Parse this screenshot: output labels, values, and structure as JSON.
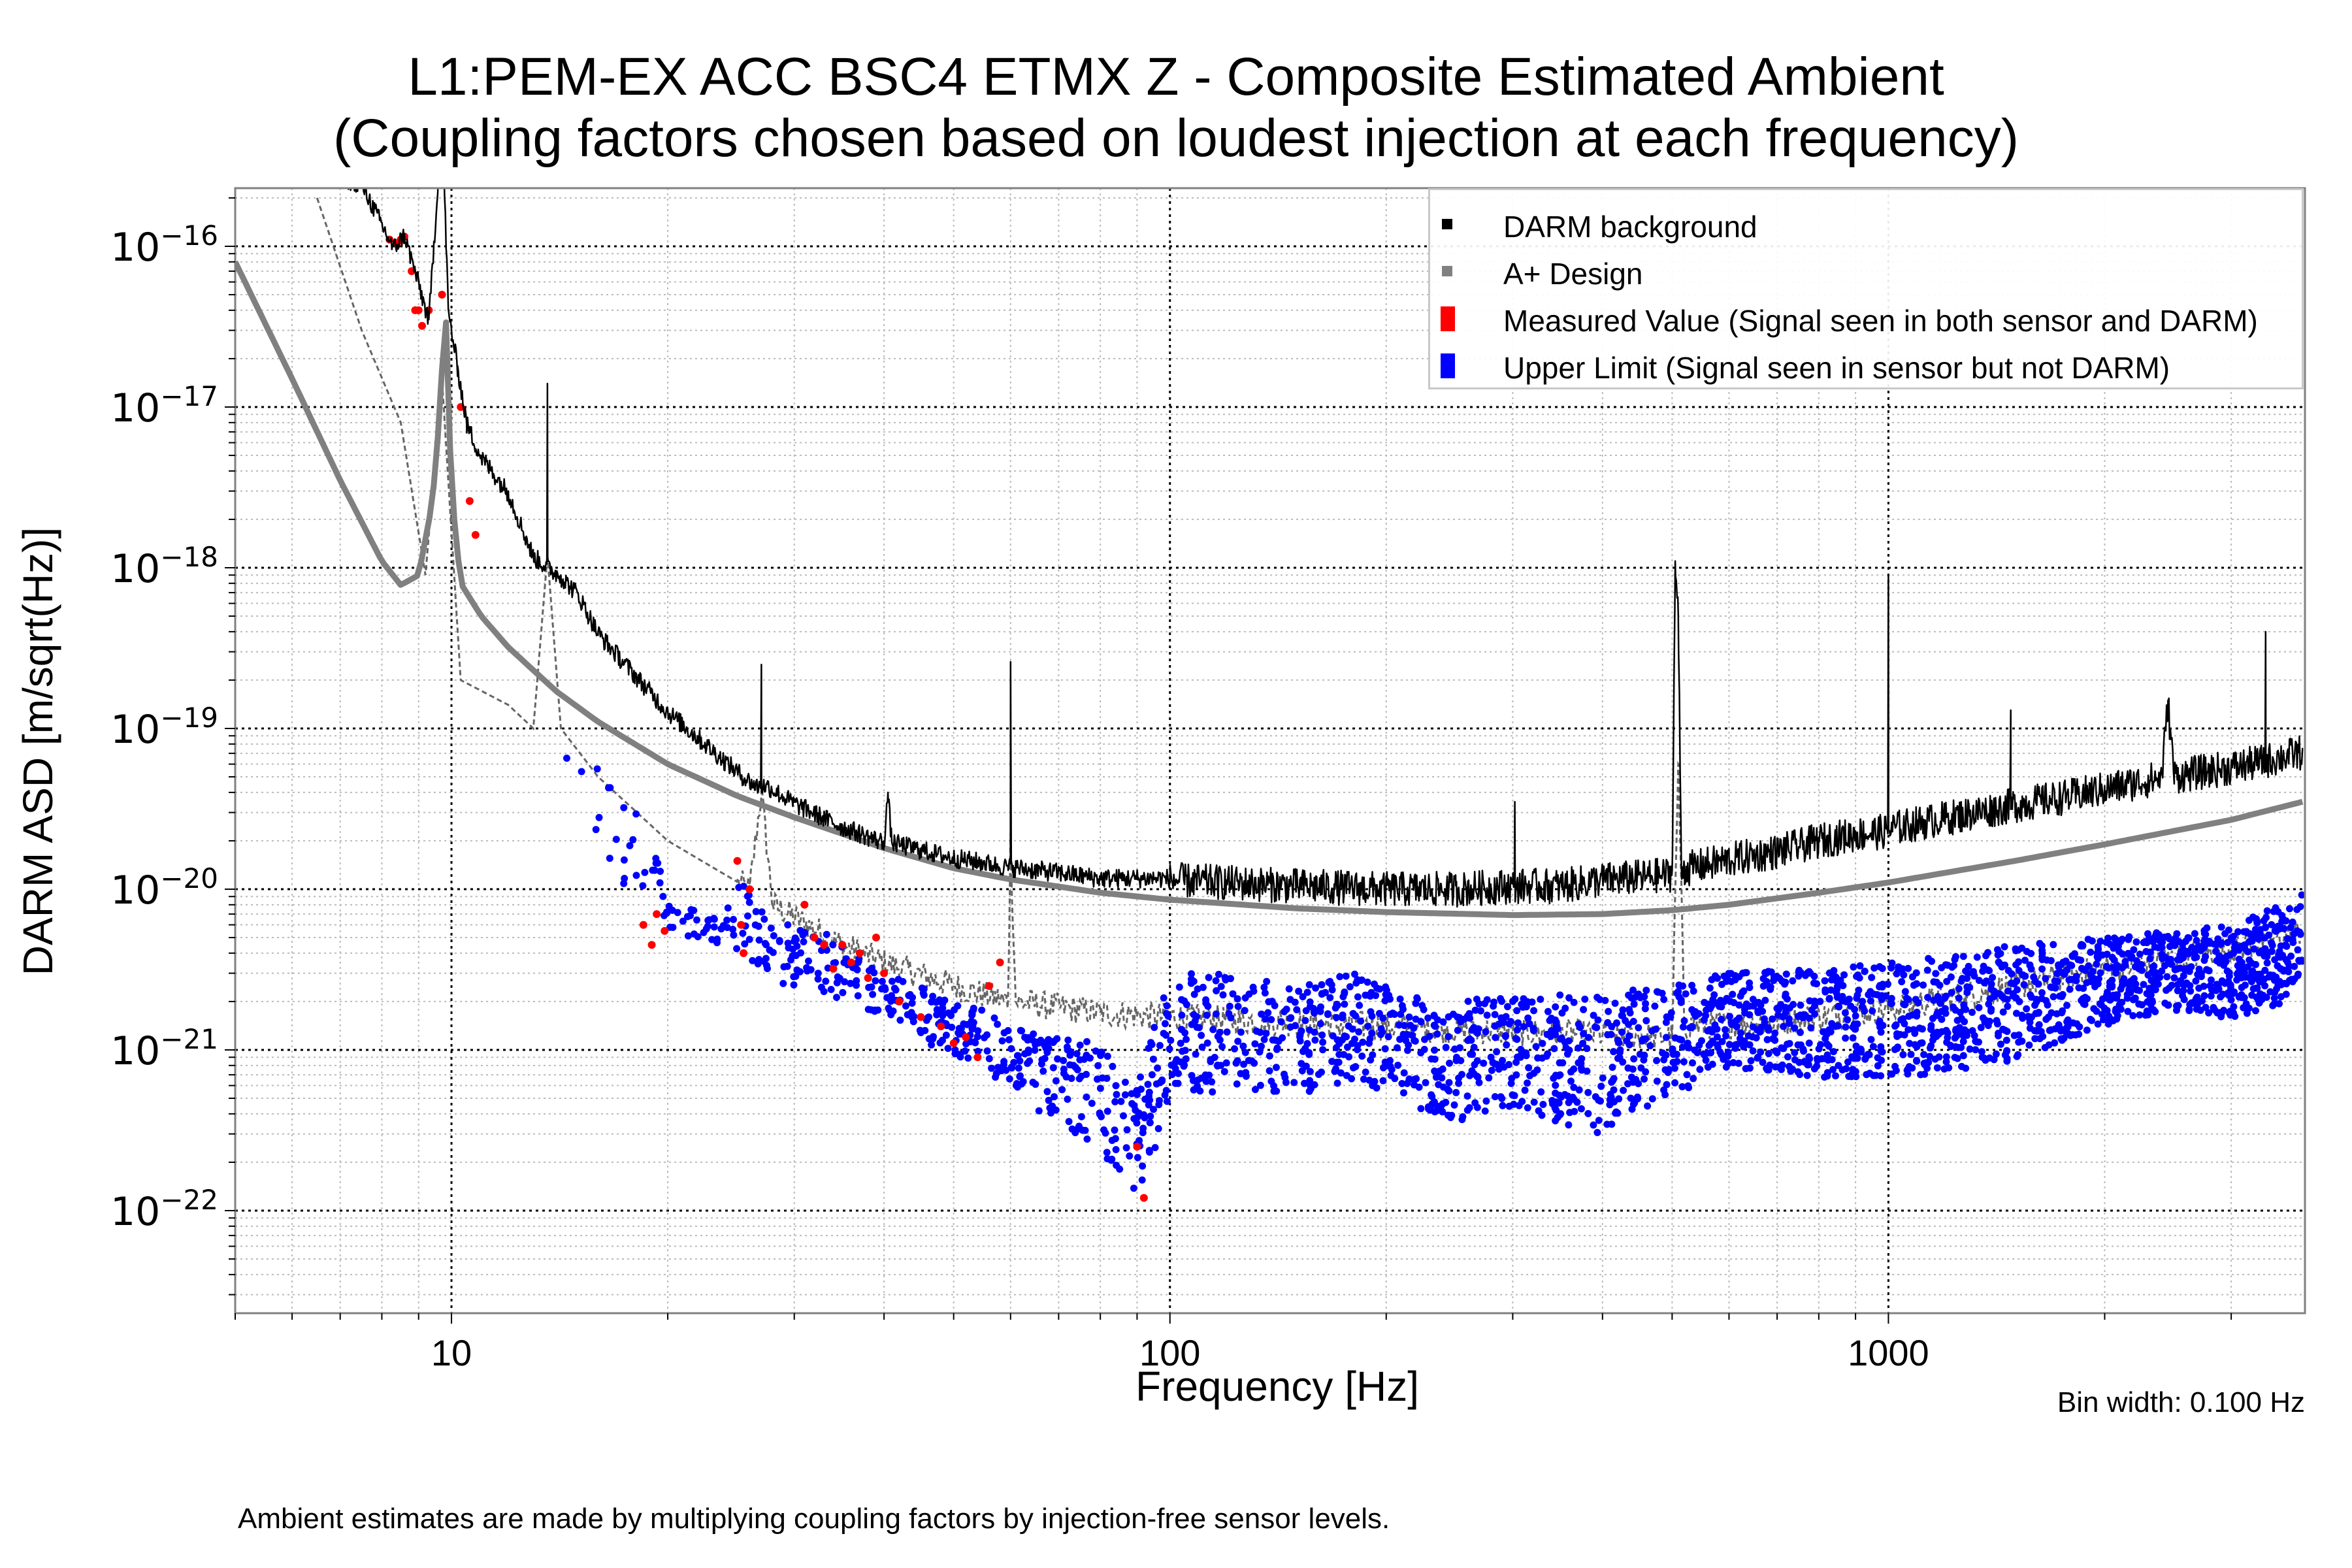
{
  "chart_data": {
    "type": "line",
    "title": "L1:PEM-EX ACC BSC4 ETMX Z - Composite Estimated Ambient",
    "subtitle": "(Coupling factors chosen based on loudest injection at each frequency)",
    "xlabel": "Frequency [Hz]",
    "ylabel": "DARM ASD [m/sqrt(Hz)]",
    "xscale": "log",
    "yscale": "log",
    "xlim": [
      5.0,
      3800
    ],
    "ylim": [
      2.3e-23,
      2.3e-16
    ],
    "grid": true,
    "x_ticks": [
      {
        "value": 10,
        "label": "10"
      },
      {
        "value": 100,
        "label": "100"
      },
      {
        "value": 1000,
        "label": "1000"
      }
    ],
    "y_ticks": [
      {
        "value": 1e-16,
        "base": "10",
        "exp": "−16"
      },
      {
        "value": 1e-17,
        "base": "10",
        "exp": "−17"
      },
      {
        "value": 1e-18,
        "base": "10",
        "exp": "−18"
      },
      {
        "value": 1e-19,
        "base": "10",
        "exp": "−19"
      },
      {
        "value": 1e-20,
        "base": "10",
        "exp": "−20"
      },
      {
        "value": 1e-21,
        "base": "10",
        "exp": "−21"
      },
      {
        "value": 1e-22,
        "base": "10",
        "exp": "−22"
      }
    ],
    "legend_position": "top-right",
    "legend": [
      {
        "label": "DARM background",
        "color": "#000000",
        "kind": "line"
      },
      {
        "label": "A+ Design",
        "color": "#808080",
        "kind": "line"
      },
      {
        "label": "Measured Value (Signal seen in both sensor and DARM)",
        "color": "#ff0000",
        "kind": "points"
      },
      {
        "label": "Upper Limit (Signal seen in sensor but not DARM)",
        "color": "#0000ff",
        "kind": "points"
      }
    ],
    "series": [
      {
        "name": "DARM background",
        "color": "#000000",
        "x": [
          6.5,
          7.5,
          8.3,
          8.6,
          9.0,
          9.3,
          9.6,
          9.75,
          9.9,
          10.2,
          10.5,
          11,
          12,
          13,
          13.6,
          14.2,
          15,
          16,
          18,
          20,
          22,
          25,
          26.5,
          27,
          27.5,
          30,
          35,
          40,
          40.5,
          41,
          45,
          50,
          55,
          59.5,
          60,
          60.5,
          70,
          80,
          100,
          150,
          200,
          250,
          300,
          302,
          304,
          350,
          400,
          450,
          500,
          505,
          510,
          515,
          520,
          600,
          700,
          800,
          900,
          990,
          1000,
          1010,
          1100,
          1200,
          1300,
          1450,
          1480,
          1500,
          1800,
          2000,
          2200,
          2400,
          2450,
          2500,
          3000,
          3300,
          3350,
          3400,
          3770
        ],
        "y": [
          3e-16,
          2.5e-16,
          1e-16,
          1.2e-16,
          6e-17,
          3.5e-17,
          3e-16,
          3.5e-16,
          4e-17,
          1.8e-17,
          8e-18,
          5e-18,
          3e-18,
          1.2e-18,
          1.4e-17,
          9e-19,
          7e-19,
          4e-19,
          2.2e-19,
          1.3e-19,
          9e-20,
          5.5e-20,
          4.5e-20,
          2.5e-19,
          4.5e-20,
          3.5e-20,
          2.5e-20,
          2e-20,
          4e-20,
          2e-20,
          1.8e-20,
          1.6e-20,
          1.5e-20,
          1.4e-20,
          2.6e-19,
          1.4e-20,
          1.3e-20,
          1.2e-20,
          1.2e-20,
          1.1e-20,
          1.05e-20,
          1.05e-20,
          1.1e-20,
          3.5e-20,
          1.1e-20,
          1.1e-20,
          1.2e-20,
          1.25e-20,
          1.3e-20,
          1.1e-18,
          5e-19,
          1.4e-20,
          1.4e-20,
          1.6e-20,
          1.8e-20,
          2.1e-20,
          2.3e-20,
          2.4e-20,
          9e-19,
          2.5e-20,
          2.7e-20,
          2.9e-20,
          3.1e-20,
          3.4e-20,
          1.3e-19,
          3.5e-20,
          4e-20,
          4.4e-20,
          4.8e-20,
          5.2e-20,
          1.5e-19,
          5.3e-20,
          6e-20,
          6.5e-20,
          4e-19,
          6.7e-20,
          7.5e-20
        ]
      },
      {
        "name": "A+ Design",
        "color": "#808080",
        "x": [
          5.0,
          6.0,
          7.0,
          8.0,
          8.5,
          9.0,
          9.4,
          9.65,
          9.8,
          10.0,
          10.3,
          11,
          12,
          14,
          16,
          20,
          25,
          30,
          40,
          50,
          60,
          80,
          100,
          150,
          200,
          300,
          400,
          500,
          600,
          800,
          1000,
          1500,
          2000,
          3000,
          3770
        ],
        "y": [
          8e-17,
          1.5e-17,
          3.5e-18,
          1.1e-18,
          7.8e-19,
          9e-19,
          2.5e-18,
          1e-17,
          5e-17,
          3e-18,
          8e-19,
          5e-19,
          3.2e-19,
          1.7e-19,
          1.1e-19,
          6e-20,
          3.8e-20,
          2.8e-20,
          1.8e-20,
          1.35e-20,
          1.15e-20,
          9.5e-21,
          8.6e-21,
          7.6e-21,
          7.2e-21,
          6.9e-21,
          7e-21,
          7.4e-21,
          8e-21,
          9.5e-21,
          1.1e-20,
          1.5e-20,
          1.9e-20,
          2.7e-20,
          3.5e-20
        ]
      },
      {
        "name": "DARM background (ambient level, dashed)",
        "color": "#666666",
        "x": [
          6.5,
          7.5,
          8.5,
          9.2,
          9.7,
          10.3,
          12,
          13,
          13.6,
          14.2,
          16,
          20,
          26,
          27,
          28,
          35,
          40,
          50,
          59.5,
          60,
          61,
          80,
          100,
          200,
          300,
          500,
          510,
          520,
          700,
          1000,
          1500,
          2000,
          3000,
          3770
        ],
        "y": [
          2e-16,
          3e-17,
          8e-18,
          9e-19,
          1.5e-17,
          2e-19,
          1.4e-19,
          1e-19,
          1.2e-18,
          1e-19,
          5e-20,
          2e-20,
          1e-20,
          4e-20,
          8e-21,
          4.5e-21,
          3.5e-21,
          2.5e-21,
          2e-21,
          2e-20,
          2e-21,
          1.7e-21,
          1.6e-21,
          1.4e-21,
          1.3e-21,
          1.2e-21,
          6e-20,
          1.4e-21,
          1.5e-21,
          1.8e-21,
          2.5e-21,
          3.2e-21,
          4.2e-21,
          5.5e-21
        ]
      }
    ],
    "measured_points": {
      "name": "Measured Value (Signal seen in both sensor and DARM)",
      "color": "#ff0000",
      "x": [
        8.2,
        8.4,
        8.5,
        8.6,
        8.8,
        8.9,
        9.0,
        9.1,
        9.3,
        9.7,
        10.3,
        10.6,
        10.8,
        18.5,
        19.0,
        19.3,
        19.8,
        25.0,
        25.3,
        25.5,
        26.0,
        31.0,
        32.0,
        33.0,
        34.0,
        35.0,
        36.0,
        37.0,
        38.0,
        39.0,
        40.0,
        42.0,
        45.0,
        48.0,
        50.0,
        52.0,
        54.0,
        56.0,
        58.0,
        90.0,
        92.0
      ],
      "y": [
        1.1e-16,
        1.05e-16,
        1.1e-16,
        1.15e-16,
        7e-17,
        4e-17,
        4e-17,
        3.2e-17,
        4e-17,
        5e-17,
        1e-17,
        2.6e-18,
        1.6e-18,
        6e-21,
        4.5e-21,
        7e-21,
        5.5e-21,
        1.5e-20,
        6e-21,
        4e-21,
        1e-20,
        8e-21,
        5e-21,
        4.5e-21,
        3.2e-21,
        4.5e-21,
        3.5e-21,
        4e-21,
        2.8e-21,
        5e-21,
        3e-21,
        2e-21,
        1.6e-21,
        1.4e-21,
        1.1e-21,
        1.2e-21,
        9e-22,
        2.5e-21,
        3.5e-21,
        2.5e-22,
        1.2e-22
      ]
    },
    "upper_limit_envelope": {
      "name": "Upper Limit (Signal seen in sensor but not DARM)",
      "color": "#0000ff",
      "x": [
        14,
        16,
        18,
        20,
        22,
        25,
        28,
        32,
        36,
        40,
        45,
        50,
        55,
        60,
        65,
        70,
        80,
        90,
        100,
        120,
        150,
        180,
        200,
        250,
        300,
        400,
        500,
        600,
        800,
        1000,
        1200,
        1500,
        2000,
        2500,
        3000,
        3500,
        3770
      ],
      "y_high": [
        1.2e-19,
        1e-19,
        4e-20,
        1e-20,
        8e-21,
        1.2e-20,
        6e-21,
        6e-21,
        4e-21,
        3e-21,
        2.5e-21,
        2e-21,
        1.8e-21,
        1.5e-21,
        1.3e-21,
        1.2e-21,
        1.1e-21,
        6e-22,
        3e-21,
        3e-21,
        2.5e-21,
        3e-21,
        2.5e-21,
        2e-21,
        2.2e-21,
        2.2e-21,
        2.6e-21,
        3e-21,
        3.2e-21,
        3.5e-21,
        3.8e-21,
        4.5e-21,
        5e-21,
        5.5e-21,
        6e-21,
        8e-21,
        1e-20
      ],
      "y_low": [
        4e-20,
        1e-20,
        5e-21,
        4e-21,
        4e-21,
        3e-21,
        2e-21,
        1.8e-21,
        1.2e-21,
        1.5e-21,
        9e-22,
        7e-22,
        5e-22,
        5e-22,
        3e-22,
        2e-22,
        1.5e-22,
        5e-23,
        3e-22,
        3e-22,
        3e-22,
        4e-22,
        3e-22,
        2e-22,
        2.5e-22,
        1.5e-22,
        3e-22,
        5e-22,
        4e-22,
        4e-22,
        4e-22,
        5e-22,
        9e-22,
        1.2e-21,
        1e-21,
        1.2e-21,
        2e-21
      ]
    }
  },
  "annotations": {
    "bin_width": "Bin width: 0.100 Hz",
    "footnote": "Ambient estimates are made by multiplying coupling factors by injection-free sensor levels."
  }
}
